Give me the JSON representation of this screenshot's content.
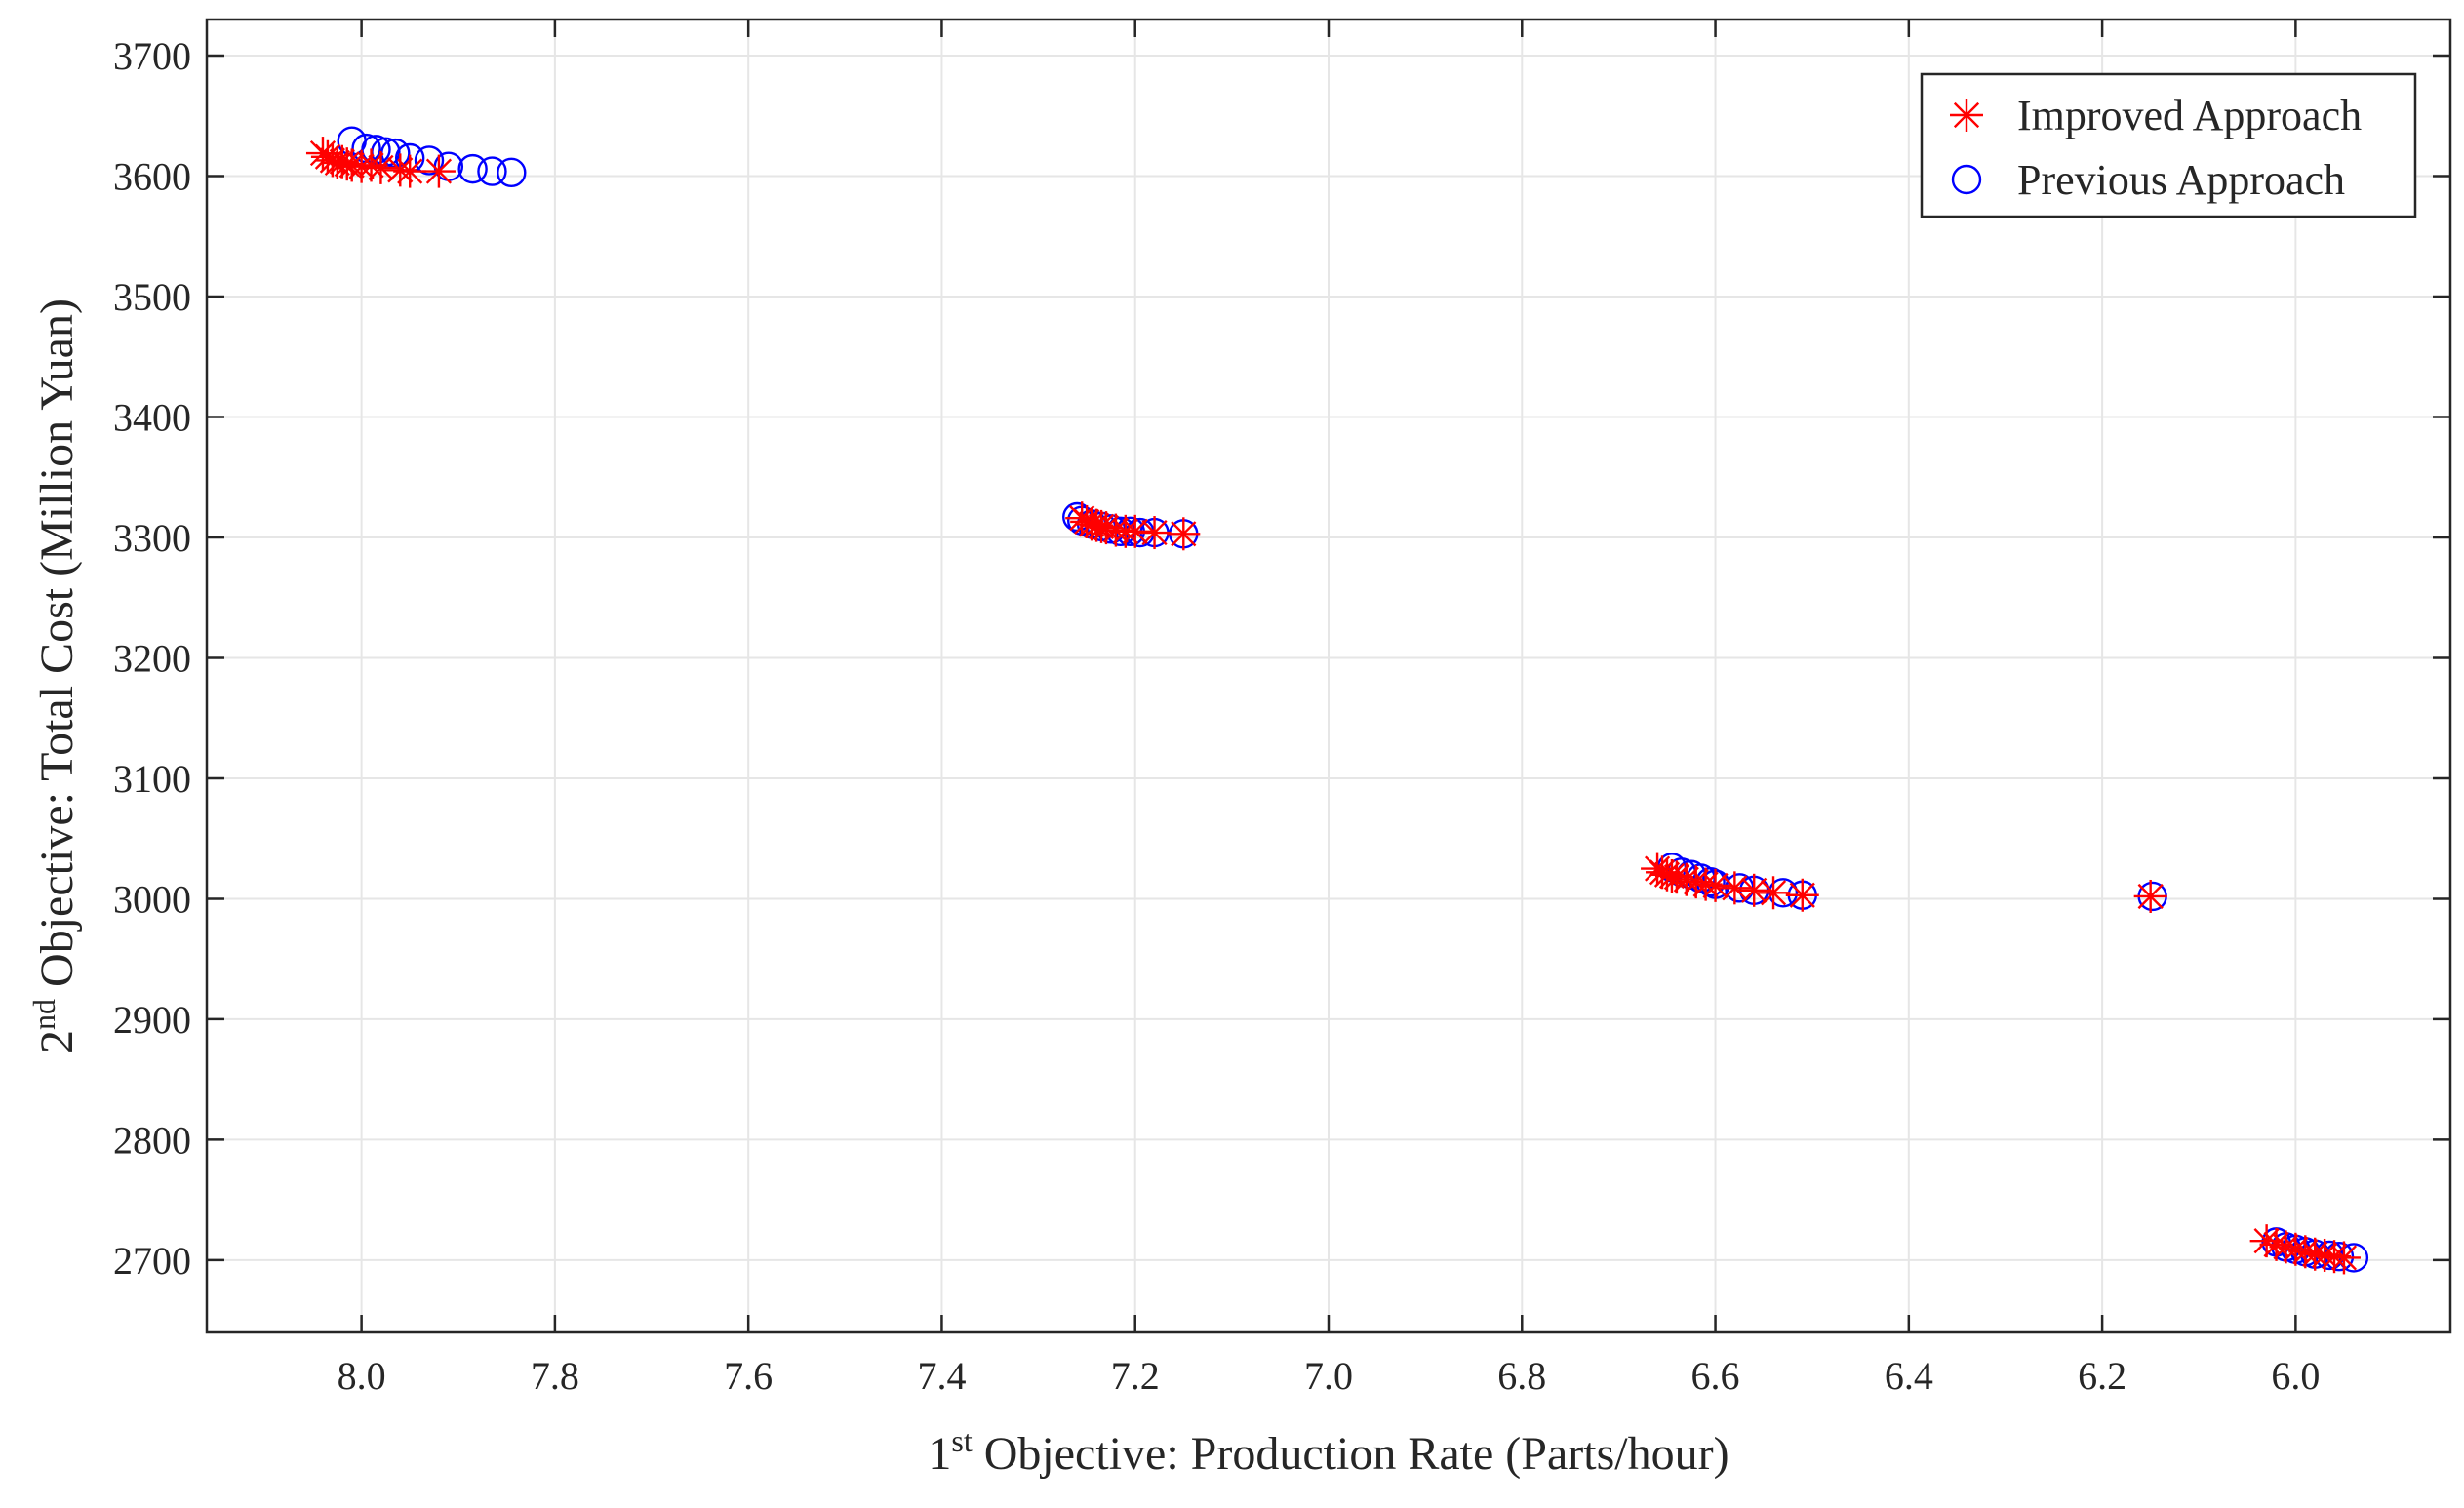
{
  "chart_data": {
    "type": "scatter",
    "title": "",
    "xlabel": {
      "sup": "st",
      "prefix": "1",
      "text": " Objective: Production Rate (Parts/hour)"
    },
    "ylabel": {
      "sup": "nd",
      "prefix": "2",
      "text": " Objective: Total Cost (Million Yuan)"
    },
    "x_reversed": true,
    "xlim": [
      8.16,
      5.84
    ],
    "ylim": [
      2640,
      3730
    ],
    "xticks": [
      8.0,
      7.8,
      7.6,
      7.4,
      7.2,
      7.0,
      6.8,
      6.6,
      6.4,
      6.2,
      6.0
    ],
    "xtick_labels": [
      "8.0",
      "7.8",
      "7.6",
      "7.4",
      "7.2",
      "7.0",
      "6.8",
      "6.6",
      "6.4",
      "6.2",
      "6.0"
    ],
    "yticks": [
      2700,
      2800,
      2900,
      3000,
      3100,
      3200,
      3300,
      3400,
      3500,
      3600,
      3700
    ],
    "ytick_labels": [
      "2700",
      "2800",
      "2900",
      "3000",
      "3100",
      "3200",
      "3300",
      "3400",
      "3500",
      "3600",
      "3700"
    ],
    "grid": true,
    "legend_position": "top-right",
    "series": [
      {
        "name": "Improved Approach",
        "marker": "asterisk",
        "color": "#ff0000",
        "points": [
          [
            8.04,
            3619
          ],
          [
            8.035,
            3616
          ],
          [
            8.03,
            3613
          ],
          [
            8.025,
            3611
          ],
          [
            8.02,
            3612
          ],
          [
            8.015,
            3610
          ],
          [
            8.01,
            3609
          ],
          [
            8.0,
            3608
          ],
          [
            7.99,
            3609
          ],
          [
            7.98,
            3607
          ],
          [
            7.96,
            3605
          ],
          [
            7.95,
            3604
          ],
          [
            7.92,
            3604
          ],
          [
            7.255,
            3316
          ],
          [
            7.25,
            3313
          ],
          [
            7.245,
            3311
          ],
          [
            7.24,
            3310
          ],
          [
            7.235,
            3309
          ],
          [
            7.23,
            3308
          ],
          [
            7.22,
            3306
          ],
          [
            7.21,
            3305
          ],
          [
            7.2,
            3305
          ],
          [
            7.18,
            3304
          ],
          [
            7.15,
            3303
          ],
          [
            6.66,
            3025
          ],
          [
            6.655,
            3022
          ],
          [
            6.65,
            3020
          ],
          [
            6.645,
            3019
          ],
          [
            6.64,
            3018
          ],
          [
            6.63,
            3016
          ],
          [
            6.62,
            3014
          ],
          [
            6.61,
            3012
          ],
          [
            6.6,
            3011
          ],
          [
            6.58,
            3009
          ],
          [
            6.56,
            3007
          ],
          [
            6.54,
            3005
          ],
          [
            6.51,
            3003
          ],
          [
            6.15,
            3002
          ],
          [
            6.03,
            2716
          ],
          [
            6.02,
            2713
          ],
          [
            6.01,
            2711
          ],
          [
            6.0,
            2709
          ],
          [
            5.99,
            2707
          ],
          [
            5.98,
            2705
          ],
          [
            5.97,
            2704
          ],
          [
            5.96,
            2703
          ],
          [
            5.95,
            2702
          ]
        ]
      },
      {
        "name": "Previous Approach",
        "marker": "circle",
        "color": "#0000ff",
        "points": [
          [
            8.01,
            3629
          ],
          [
            7.995,
            3623
          ],
          [
            7.985,
            3622
          ],
          [
            7.975,
            3620
          ],
          [
            7.965,
            3619
          ],
          [
            7.95,
            3615
          ],
          [
            7.93,
            3613
          ],
          [
            7.91,
            3608
          ],
          [
            7.885,
            3606
          ],
          [
            7.865,
            3604
          ],
          [
            7.845,
            3603
          ],
          [
            7.26,
            3317
          ],
          [
            7.255,
            3314
          ],
          [
            7.245,
            3311
          ],
          [
            7.235,
            3309
          ],
          [
            7.225,
            3307
          ],
          [
            7.215,
            3305
          ],
          [
            7.205,
            3305
          ],
          [
            7.195,
            3304
          ],
          [
            7.18,
            3304
          ],
          [
            7.15,
            3303
          ],
          [
            6.645,
            3026
          ],
          [
            6.635,
            3022
          ],
          [
            6.625,
            3020
          ],
          [
            6.615,
            3017
          ],
          [
            6.605,
            3014
          ],
          [
            6.6,
            3012
          ],
          [
            6.575,
            3009
          ],
          [
            6.56,
            3007
          ],
          [
            6.53,
            3005
          ],
          [
            6.51,
            3003
          ],
          [
            6.148,
            3002
          ],
          [
            6.02,
            2715
          ],
          [
            6.01,
            2711
          ],
          [
            6.0,
            2709
          ],
          [
            5.99,
            2707
          ],
          [
            5.98,
            2705
          ],
          [
            5.965,
            2704
          ],
          [
            5.955,
            2703
          ],
          [
            5.94,
            2702
          ]
        ]
      }
    ]
  }
}
